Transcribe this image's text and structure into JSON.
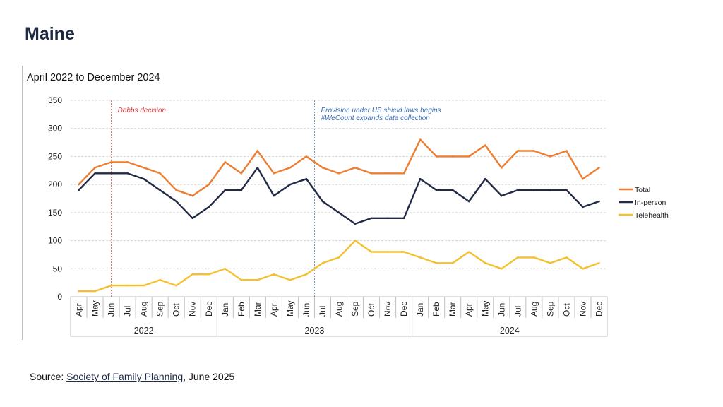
{
  "page": {
    "title": "Maine"
  },
  "source": {
    "prefix": "Source: ",
    "link_text": "Society of Family Planning",
    "suffix": ", June 2025"
  },
  "colors": {
    "total": "#ED7D31",
    "in_person": "#222B45",
    "telehealth": "#F4C02E",
    "dobbs": "#E03A3A",
    "shield": "#3E6EB4",
    "grid": "#d4d4d4",
    "axis": "#bfbfbf"
  },
  "chart_data": {
    "type": "line",
    "title": "April 2022 to December 2024",
    "xlabel": "",
    "ylabel": "",
    "ylim": [
      0,
      350
    ],
    "yticks": [
      0,
      50,
      100,
      150,
      200,
      250,
      300,
      350
    ],
    "grid": true,
    "legend_position": "right",
    "categories": [
      "Apr",
      "May",
      "Jun",
      "Jul",
      "Aug",
      "Sep",
      "Oct",
      "Nov",
      "Dec",
      "Jan",
      "Feb",
      "Mar",
      "Apr",
      "May",
      "Jun",
      "Jul",
      "Aug",
      "Sep",
      "Oct",
      "Nov",
      "Dec",
      "Jan",
      "Feb",
      "Mar",
      "Apr",
      "May",
      "Jun",
      "Jul",
      "Aug",
      "Sep",
      "Oct",
      "Nov",
      "Dec"
    ],
    "year_groups": [
      {
        "label": "2022",
        "start": 0,
        "end": 8
      },
      {
        "label": "2023",
        "start": 9,
        "end": 20
      },
      {
        "label": "2024",
        "start": 21,
        "end": 32
      }
    ],
    "series": [
      {
        "name": "Total",
        "color": "#ED7D31",
        "values": [
          200,
          230,
          240,
          240,
          230,
          220,
          190,
          180,
          200,
          240,
          220,
          260,
          220,
          230,
          250,
          230,
          220,
          230,
          220,
          220,
          220,
          280,
          250,
          250,
          250,
          270,
          230,
          260,
          260,
          250,
          260,
          210,
          230
        ]
      },
      {
        "name": "In-person",
        "color": "#222B45",
        "values": [
          190,
          220,
          220,
          220,
          210,
          190,
          170,
          140,
          160,
          190,
          190,
          230,
          180,
          200,
          210,
          170,
          150,
          130,
          140,
          140,
          140,
          210,
          190,
          190,
          170,
          210,
          180,
          190,
          190,
          190,
          190,
          160,
          170
        ]
      },
      {
        "name": "Telehealth",
        "color": "#F4C02E",
        "values": [
          10,
          10,
          20,
          20,
          20,
          30,
          20,
          40,
          40,
          50,
          30,
          30,
          40,
          30,
          40,
          60,
          70,
          100,
          80,
          80,
          80,
          70,
          60,
          60,
          80,
          60,
          50,
          70,
          70,
          60,
          70,
          50,
          60
        ]
      }
    ],
    "annotations": [
      {
        "label": "Dobbs decision",
        "x_index": 2,
        "color": "#E03A3A"
      },
      {
        "label": "Provision under US shield laws begins",
        "label2": "#WeCount expands data collection",
        "x_index": 14.5,
        "color": "#3E6EB4"
      }
    ]
  }
}
